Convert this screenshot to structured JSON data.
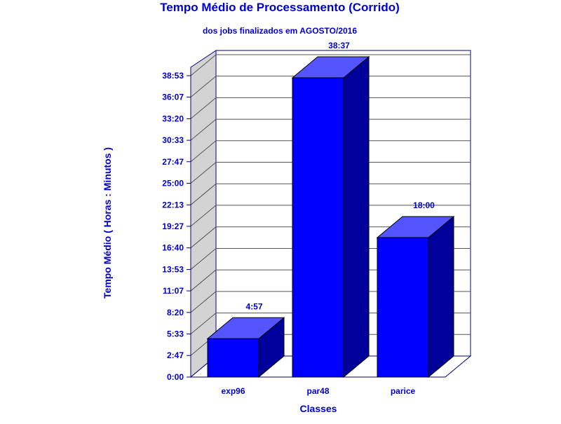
{
  "chart_data": {
    "type": "bar",
    "title": "Tempo Médio de Processamento (Corrido)",
    "subtitle": "dos jobs finalizados em AGOSTO/2016",
    "xlabel": "Classes",
    "ylabel": "Tempo Médio ( Horas : Minutos )",
    "categories": [
      "exp96",
      "par48",
      "parice"
    ],
    "values_minutes": [
      297,
      2317,
      1080
    ],
    "value_labels": [
      "4:57",
      "38:37",
      "18:00"
    ],
    "ylim_minutes": [
      0,
      2333
    ],
    "yticks_minutes": [
      0,
      167,
      333,
      500,
      667,
      833,
      1000,
      1167,
      1333,
      1500,
      1667,
      1833,
      2000,
      2167,
      2333
    ],
    "ytick_labels": [
      "0:00",
      "2:47",
      "5:33",
      "8:20",
      "11:07",
      "13:53",
      "16:40",
      "19:27",
      "22:13",
      "25:00",
      "27:47",
      "30:33",
      "33:20",
      "36:07",
      "38:53"
    ],
    "grid": true,
    "bar_color": "#0000ff",
    "text_color": "#0000cc"
  }
}
